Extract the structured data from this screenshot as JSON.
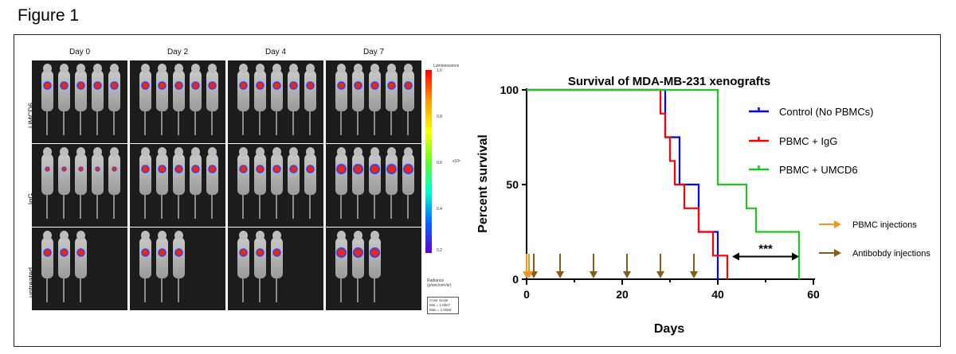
{
  "figure_label": "Figure 1",
  "imaging": {
    "days": [
      "Day 0",
      "Day 2",
      "Day 4",
      "Day 7"
    ],
    "rows": [
      "UMCD6",
      "IgG",
      "untreated"
    ],
    "colorbar": {
      "title": "Luminescence",
      "ticks": [
        "1.0",
        "0.8",
        "0.6",
        "0.4",
        "0.2"
      ],
      "multiplier": "x10⁸",
      "unit_label": "Radiance (p/sec/cm²/sr)",
      "scale_title": "Color Scale",
      "min": "Min = 1.00e7",
      "max": "Max = 1.00e8",
      "colors": [
        "#ff0000",
        "#ffff00",
        "#00ffcc",
        "#0066ff",
        "#6600cc"
      ]
    }
  },
  "chart_data": {
    "type": "line",
    "title": "Survival of MDA-MB-231 xenografts",
    "xlabel": "Days",
    "ylabel": "Percent survival",
    "xlim": [
      0,
      60
    ],
    "ylim": [
      0,
      100
    ],
    "xticks": [
      "0",
      "20",
      "40",
      "60"
    ],
    "yticks": [
      "0",
      "50",
      "100"
    ],
    "step": true,
    "series": [
      {
        "name": "Control (No PBMCs)",
        "color": "#0000ff",
        "points": [
          [
            0,
            100
          ],
          [
            29,
            100
          ],
          [
            29,
            75
          ],
          [
            32,
            75
          ],
          [
            32,
            50
          ],
          [
            36,
            50
          ],
          [
            36,
            25
          ],
          [
            40,
            25
          ],
          [
            40,
            0
          ]
        ]
      },
      {
        "name": "PBMC + IgG",
        "color": "#ff0000",
        "points": [
          [
            0,
            100
          ],
          [
            28,
            100
          ],
          [
            28,
            87.5
          ],
          [
            29,
            87.5
          ],
          [
            29,
            75
          ],
          [
            30,
            75
          ],
          [
            30,
            62.5
          ],
          [
            31,
            62.5
          ],
          [
            31,
            50
          ],
          [
            33,
            50
          ],
          [
            33,
            37.5
          ],
          [
            36,
            37.5
          ],
          [
            36,
            25
          ],
          [
            39,
            25
          ],
          [
            39,
            12.5
          ],
          [
            42,
            12.5
          ],
          [
            42,
            0
          ]
        ]
      },
      {
        "name": "PBMC + UMCD6",
        "color": "#22c322",
        "points": [
          [
            0,
            100
          ],
          [
            40,
            100
          ],
          [
            40,
            50
          ],
          [
            46,
            50
          ],
          [
            46,
            37.5
          ],
          [
            48,
            37.5
          ],
          [
            48,
            25
          ],
          [
            57,
            25
          ],
          [
            57,
            0
          ]
        ]
      }
    ],
    "pbmc_injections": [
      0,
      0.5
    ],
    "antibody_injections": [
      1.5,
      7,
      14,
      21,
      28,
      35
    ],
    "significance": {
      "label": "***",
      "from": 43,
      "to": 57,
      "y": 12
    }
  },
  "injection_legend": {
    "pbmc": {
      "label": "PBMC injections",
      "color": "#f7941d"
    },
    "antibody": {
      "label": "Antibobdy injections",
      "color": "#8b5a1a"
    }
  }
}
